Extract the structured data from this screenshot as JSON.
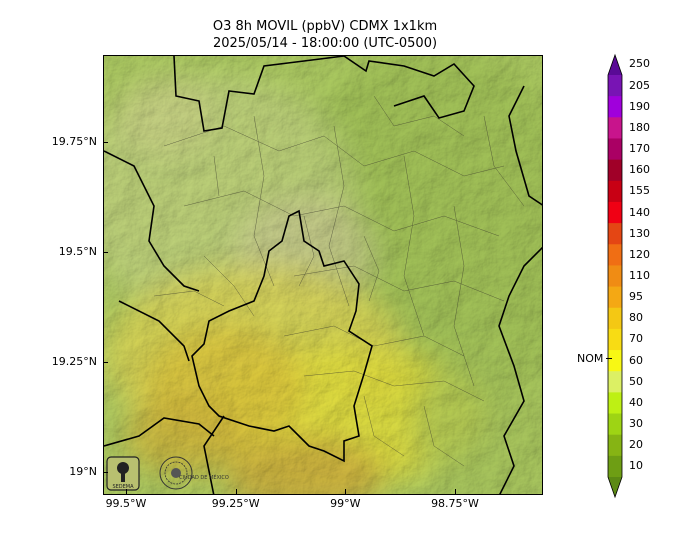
{
  "title": {
    "line1": "O3 8h MOVIL (ppbV) CDMX 1x1km",
    "line2": "2025/05/14 - 18:00:00 (UTC-0500)"
  },
  "axes": {
    "y_ticks": [
      {
        "label": "19.75°N",
        "value": 19.75
      },
      {
        "label": "19.5°N",
        "value": 19.5
      },
      {
        "label": "19.25°N",
        "value": 19.25
      },
      {
        "label": "19°N",
        "value": 19.0
      }
    ],
    "x_ticks": [
      {
        "label": "99.5°W",
        "value": -99.5
      },
      {
        "label": "99.25°W",
        "value": -99.25
      },
      {
        "label": "99°W",
        "value": -99.0
      },
      {
        "label": "98.75°W",
        "value": -98.75
      }
    ]
  },
  "colorbar": {
    "levels": [
      "10",
      "20",
      "30",
      "40",
      "50",
      "60",
      "70",
      "80",
      "95",
      "110",
      "120",
      "130",
      "140",
      "155",
      "160",
      "170",
      "180",
      "190",
      "205",
      "250"
    ],
    "colors": [
      "#5c8a14",
      "#6e9e14",
      "#86b414",
      "#9ed414",
      "#bef014",
      "#dcf064",
      "#f8f814",
      "#f8dc14",
      "#f4c814",
      "#f4a814",
      "#f08c14",
      "#f06e14",
      "#e44614",
      "#f00014",
      "#c80014",
      "#a00028",
      "#aa0064",
      "#c8148c",
      "#a000dc",
      "#7814b4",
      "#5a0a96"
    ],
    "nom_label": "NOM",
    "nom_value": 65
  },
  "logos": {
    "left": "SEDEMA",
    "right": "CIUDAD DE MÉXICO"
  }
}
